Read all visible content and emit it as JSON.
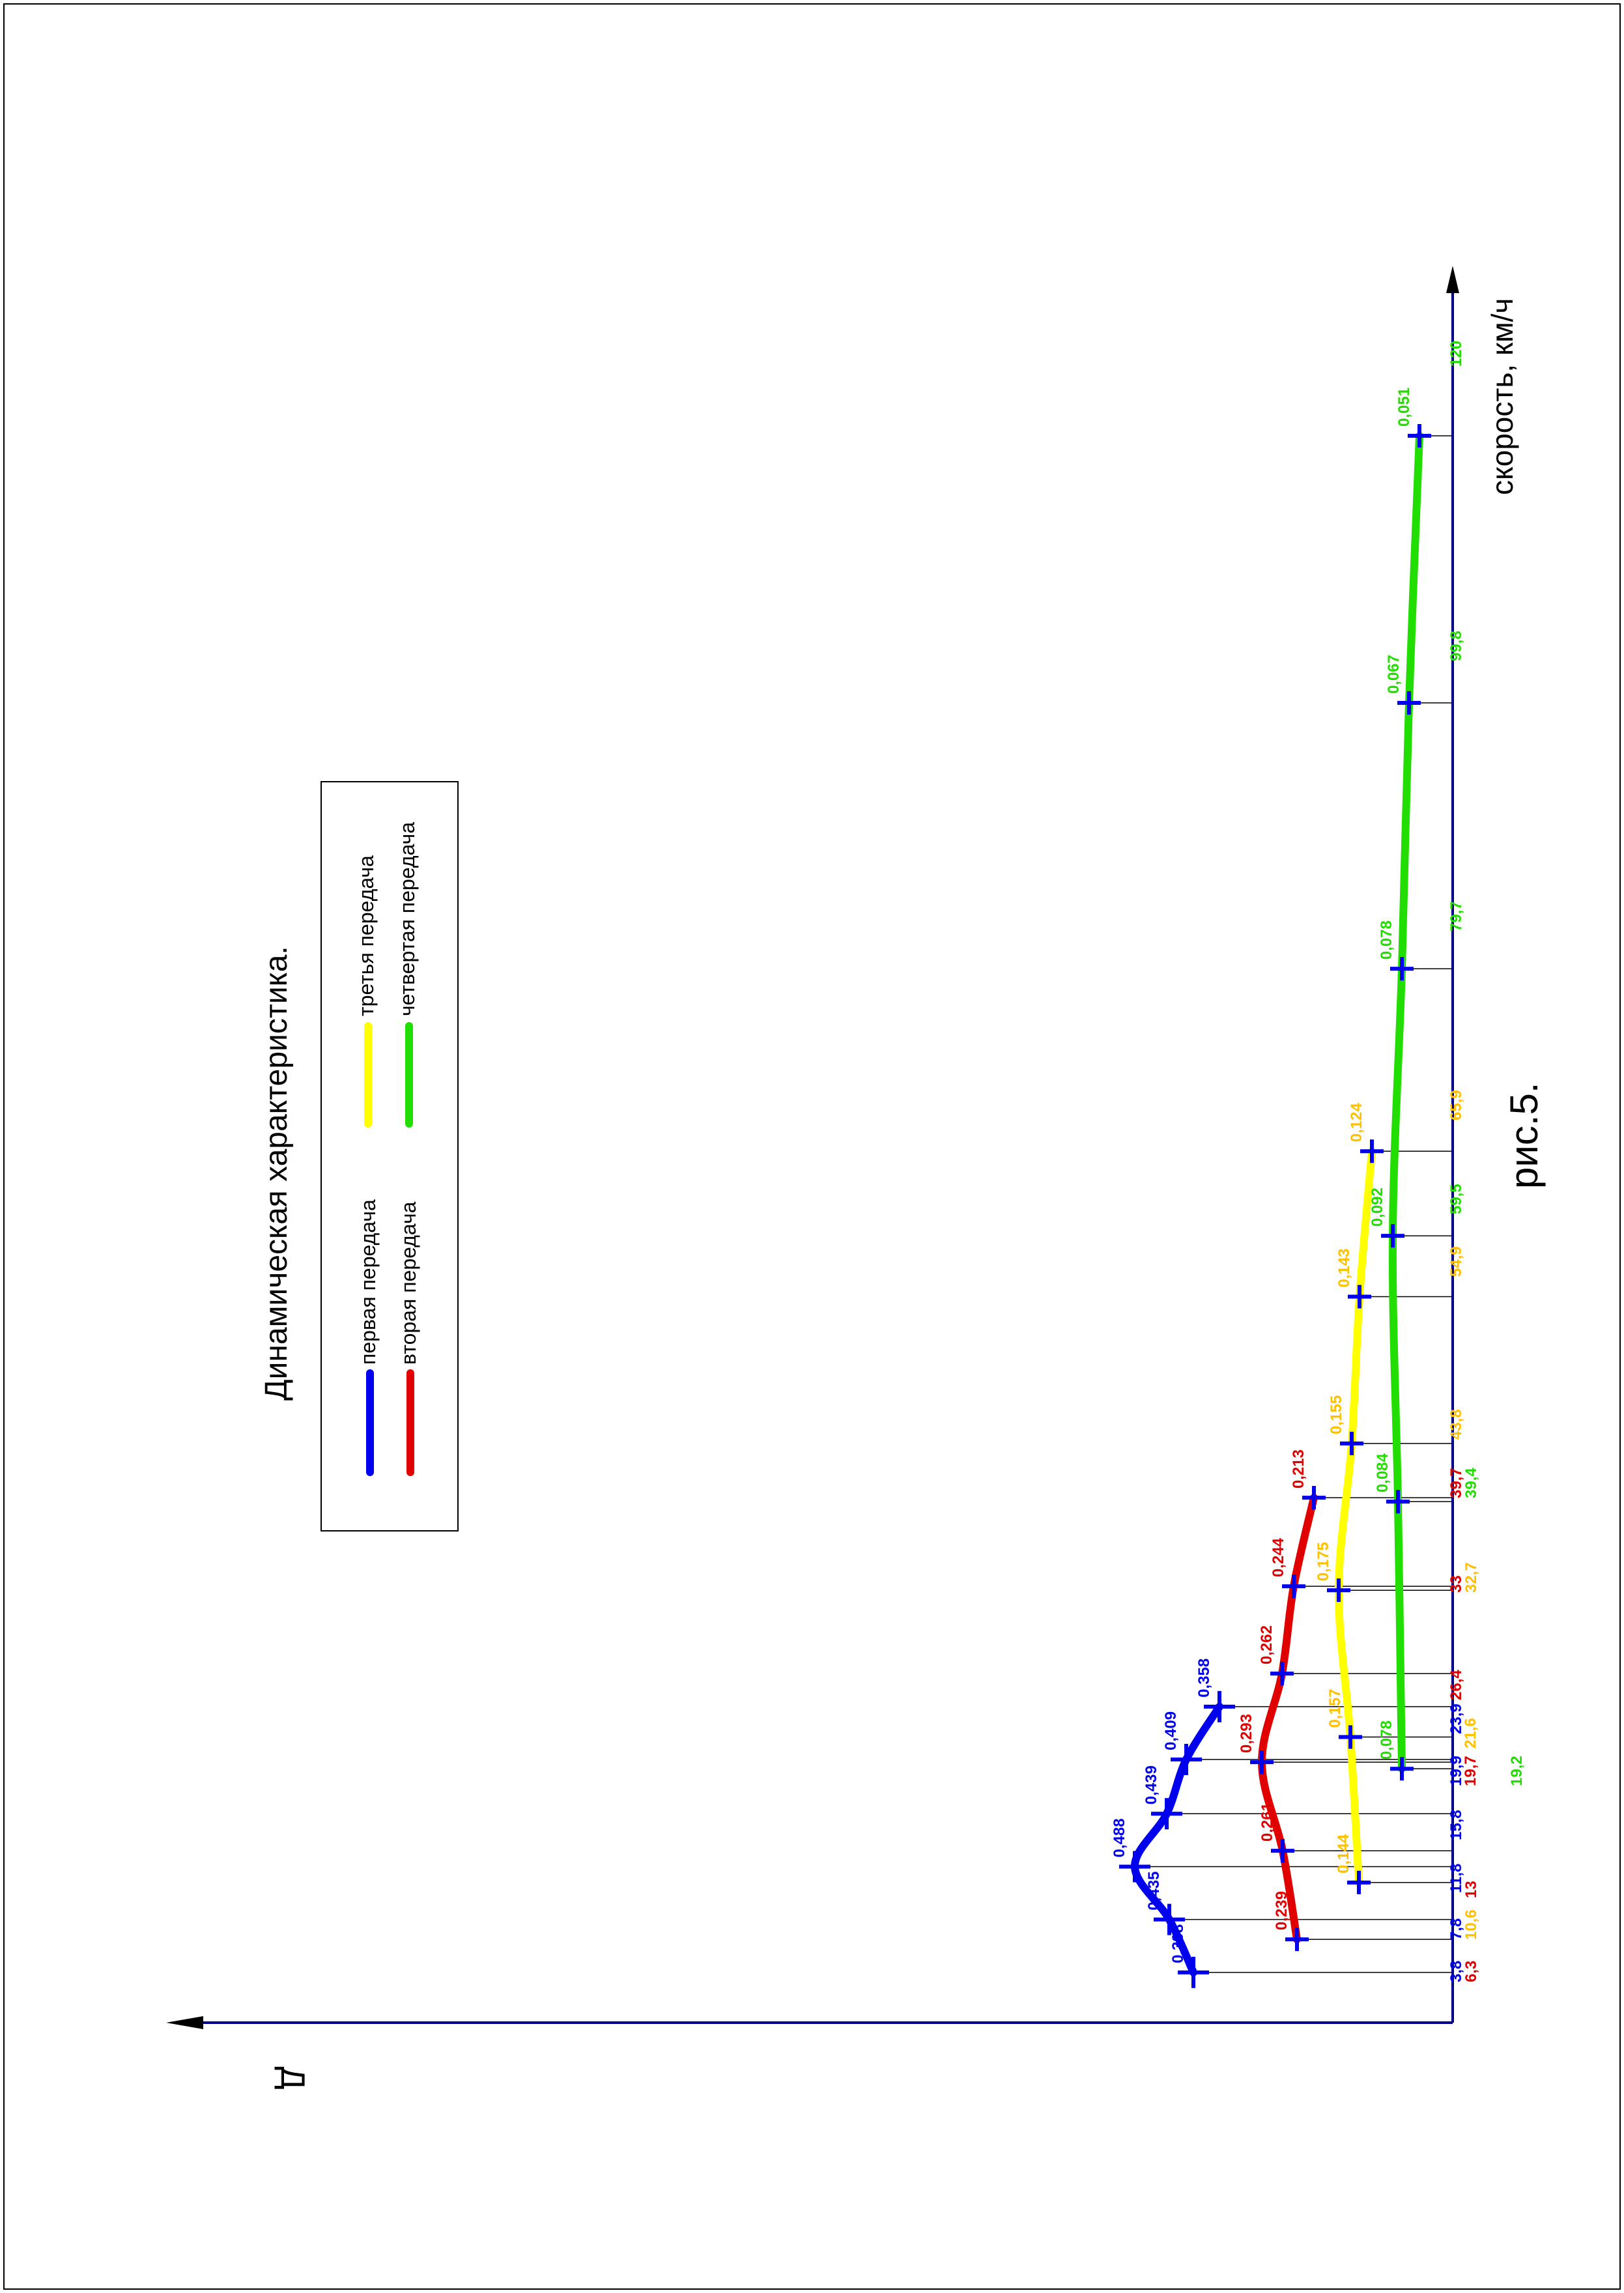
{
  "chart_data": {
    "type": "line",
    "title": "Динамическая характеристика.",
    "caption": "рис.5.",
    "xlabel": "скорость, км/ч",
    "ylabel": "Д",
    "orientation": "rotated-90-ccw",
    "colors": {
      "axis": "#00008B",
      "grid": "#000000",
      "first": "#0000EE",
      "second": "#E00000",
      "third": "#FFFF00",
      "third_text": "#FFC000",
      "fourth": "#22DD00"
    },
    "legend": {
      "placement": "top-left",
      "entries": [
        "первая передача",
        "вторая передача",
        "третья передача",
        "четвертая передача"
      ]
    },
    "x_ticks": [
      {
        "label": "3,8",
        "color_key": "first"
      },
      {
        "label": "6,3",
        "color_key": "second"
      },
      {
        "label": "7,8",
        "color_key": "first"
      },
      {
        "label": "10,6",
        "color_key": "third_text"
      },
      {
        "label": "11,8",
        "color_key": "first"
      },
      {
        "label": "13",
        "color_key": "second"
      },
      {
        "label": "15,8",
        "color_key": "first"
      },
      {
        "label": "19,2",
        "color_key": "fourth"
      },
      {
        "label": "19,7",
        "color_key": "second"
      },
      {
        "label": "19,9",
        "color_key": "first"
      },
      {
        "label": "21,6",
        "color_key": "third_text"
      },
      {
        "label": "23,9",
        "color_key": "first"
      },
      {
        "label": "26,4",
        "color_key": "second"
      },
      {
        "label": "32,7",
        "color_key": "third_text"
      },
      {
        "label": "33",
        "color_key": "second"
      },
      {
        "label": "39,4",
        "color_key": "fourth"
      },
      {
        "label": "39,7",
        "color_key": "second"
      },
      {
        "label": "43,8",
        "color_key": "third_text"
      },
      {
        "label": "54,9",
        "color_key": "third_text"
      },
      {
        "label": "59,5",
        "color_key": "fourth"
      },
      {
        "label": "65,9",
        "color_key": "third_text"
      },
      {
        "label": "79,7",
        "color_key": "fourth"
      },
      {
        "label": "99,8",
        "color_key": "fourth"
      },
      {
        "label": "120",
        "color_key": "fourth"
      }
    ],
    "series": [
      {
        "name": "первая передача",
        "color_key": "first",
        "x": [
          3.8,
          7.8,
          11.8,
          15.8,
          19.9,
          23.9
        ],
        "y": [
          0.398,
          0.435,
          0.488,
          0.439,
          0.409,
          0.358
        ],
        "labels": [
          "0,398",
          "0,435",
          "0,488",
          "0,439",
          "0,409",
          "0,358"
        ]
      },
      {
        "name": "вторая передача",
        "color_key": "second",
        "x": [
          6.3,
          13,
          19.7,
          26.4,
          33,
          39.7
        ],
        "y": [
          0.239,
          0.261,
          0.293,
          0.262,
          0.244,
          0.213
        ],
        "labels": [
          "0,239",
          "0,261",
          "0,293",
          "0,262",
          "0,244",
          "0,213"
        ]
      },
      {
        "name": "третья передача",
        "color_key": "third",
        "x": [
          10.6,
          21.6,
          32.7,
          43.8,
          54.9,
          65.9
        ],
        "y": [
          0.144,
          0.157,
          0.175,
          0.155,
          0.143,
          0.124
        ],
        "labels": [
          "0,144",
          "0,157",
          "0,175",
          "0,155",
          "0,143",
          "0,124"
        ]
      },
      {
        "name": "четвертая передача",
        "color_key": "fourth",
        "x": [
          19.2,
          39.4,
          59.5,
          79.7,
          99.8,
          120
        ],
        "y": [
          0.078,
          0.084,
          0.092,
          0.078,
          0.067,
          0.051
        ],
        "labels": [
          "0,078",
          "0,084",
          "0,092",
          "0,078",
          "0,067",
          "0,051"
        ]
      }
    ]
  }
}
